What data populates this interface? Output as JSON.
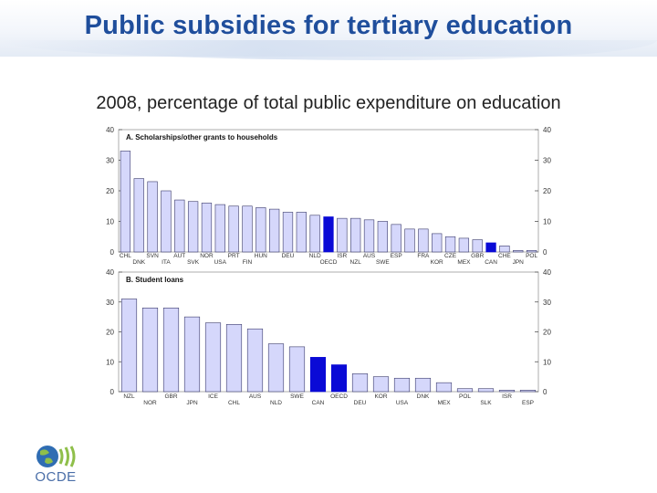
{
  "title": "Public subsidies for tertiary education",
  "subtitle": "2008, percentage of total public expenditure on education",
  "logo_text": "OCDE",
  "colors": {
    "title": "#1f4e9c",
    "bar_fill": "#d5d7fb",
    "bar_stroke": "#3a3a6a",
    "highlight": "#0a0ad6",
    "axis": "#555555"
  },
  "chart_data": [
    {
      "type": "bar",
      "title": "A. Scholarships/other grants to households",
      "ylim": [
        0,
        40
      ],
      "yticks": [
        0,
        10,
        20,
        30,
        40
      ],
      "categories": [
        "CHL",
        "DNK",
        "SVN",
        "ITA",
        "AUT",
        "SVK",
        "NOR",
        "USA",
        "PRT",
        "FIN",
        "HUN",
        "",
        "DEU",
        "",
        "NLD",
        "OECD",
        "ISR",
        "NZL",
        "AUS",
        "SWE",
        "ESP",
        "",
        "FRA",
        "KOR",
        "CZE",
        "MEX",
        "GBR",
        "CAN",
        "CHE",
        "JPN",
        "POL"
      ],
      "values": [
        33,
        24,
        23,
        20,
        17,
        16.5,
        16,
        15.5,
        15,
        15,
        14.5,
        14,
        13,
        13,
        12,
        11.5,
        11,
        11,
        10.5,
        10,
        9,
        7.5,
        7.5,
        6,
        5,
        4.5,
        4,
        3,
        2,
        0.5,
        0.5
      ],
      "highlight": [
        "OECD",
        "CAN"
      ],
      "label_rows": "alternate"
    },
    {
      "type": "bar",
      "title": "B. Student loans",
      "ylim": [
        0,
        40
      ],
      "yticks": [
        0,
        10,
        20,
        30,
        40
      ],
      "categories": [
        "NZL",
        "NOR",
        "GBR",
        "JPN",
        "ICE",
        "CHL",
        "AUS",
        "NLD",
        "SWE",
        "CAN",
        "OECD",
        "DEU",
        "KOR",
        "USA",
        "DNK",
        "MEX",
        "POL",
        "SLK",
        "ISR",
        "ESP"
      ],
      "values": [
        31,
        28,
        28,
        25,
        23,
        22.5,
        21,
        16,
        15,
        11.5,
        9,
        6,
        5,
        4.5,
        4.5,
        3,
        1,
        1,
        0.5,
        0.5
      ],
      "highlight": [
        "CAN",
        "OECD"
      ],
      "label_rows": "alternate"
    }
  ]
}
